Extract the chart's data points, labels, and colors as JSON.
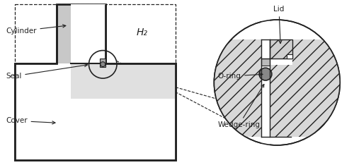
{
  "bg_color": "#ffffff",
  "light_gray": "#c8c8c8",
  "line_color": "#222222",
  "hatch_gray": "#d0d0d0",
  "oring_gray": "#888888",
  "labels": {
    "cylinder": "Cylinder",
    "seal": "Seal",
    "cover": "Cover",
    "h2": "H₂",
    "lid": "Lid",
    "oring": "O-ring",
    "wedgering": "Wedge-ring"
  },
  "figsize": [
    5.0,
    2.34
  ],
  "dpi": 100
}
